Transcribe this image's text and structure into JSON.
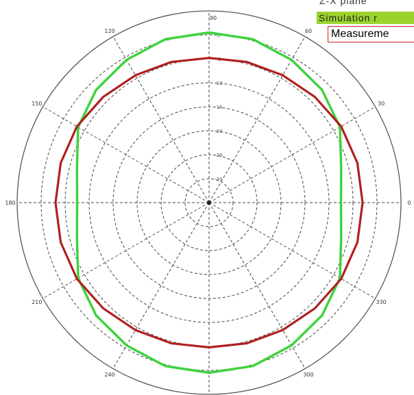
{
  "chart_data": {
    "type": "polar-line",
    "legend": {
      "title": "Z-X plane",
      "entries": [
        {
          "name": "Simulation r",
          "color": "#3ed33e"
        },
        {
          "name": "Measureme",
          "color": "#b02020"
        }
      ]
    },
    "angular_ticks": [
      "90",
      "60",
      "30",
      "0",
      "330",
      "300",
      "270",
      "240",
      "210",
      "180",
      "150",
      "120"
    ],
    "angular_tick_angles": [
      90,
      60,
      30,
      0,
      330,
      300,
      270,
      240,
      210,
      180,
      150,
      120
    ],
    "radial_ticks": [
      "0",
      "-5",
      "-10",
      "-15",
      "-20",
      "-25",
      "-30"
    ],
    "radial_range": [
      -35,
      5
    ],
    "grid": true,
    "series": [
      {
        "name": "Simulation",
        "color": "#3ed33e",
        "angles": [
          0,
          15,
          30,
          45,
          60,
          75,
          90,
          105,
          120,
          135,
          150,
          165,
          180,
          195,
          210,
          225,
          240,
          255,
          270,
          285,
          300,
          315,
          330,
          345
        ],
        "values": [
          -7.5,
          -6.5,
          -3.5,
          -1.7,
          -0.6,
          0.3,
          0.5,
          0.3,
          -0.6,
          -1.7,
          -3.5,
          -6.5,
          -7.5,
          -6.5,
          -3.5,
          -1.7,
          -0.6,
          0.3,
          0.5,
          0.3,
          -0.6,
          -1.7,
          -3.5,
          -6.5
        ]
      },
      {
        "name": "Measurement",
        "color": "#b02020",
        "angles": [
          0,
          15,
          30,
          45,
          60,
          75,
          90,
          105,
          120,
          135,
          150,
          165,
          180,
          195,
          210,
          225,
          240,
          255,
          270,
          285,
          300,
          315,
          330,
          345
        ],
        "values": [
          -3.0,
          -3.0,
          -3.2,
          -3.8,
          -4.3,
          -4.6,
          -4.8,
          -4.6,
          -4.3,
          -3.8,
          -3.2,
          -3.0,
          -3.0,
          -3.0,
          -3.2,
          -3.8,
          -4.3,
          -4.6,
          -4.8,
          -4.6,
          -4.3,
          -3.8,
          -3.2,
          -3.0
        ]
      }
    ]
  }
}
